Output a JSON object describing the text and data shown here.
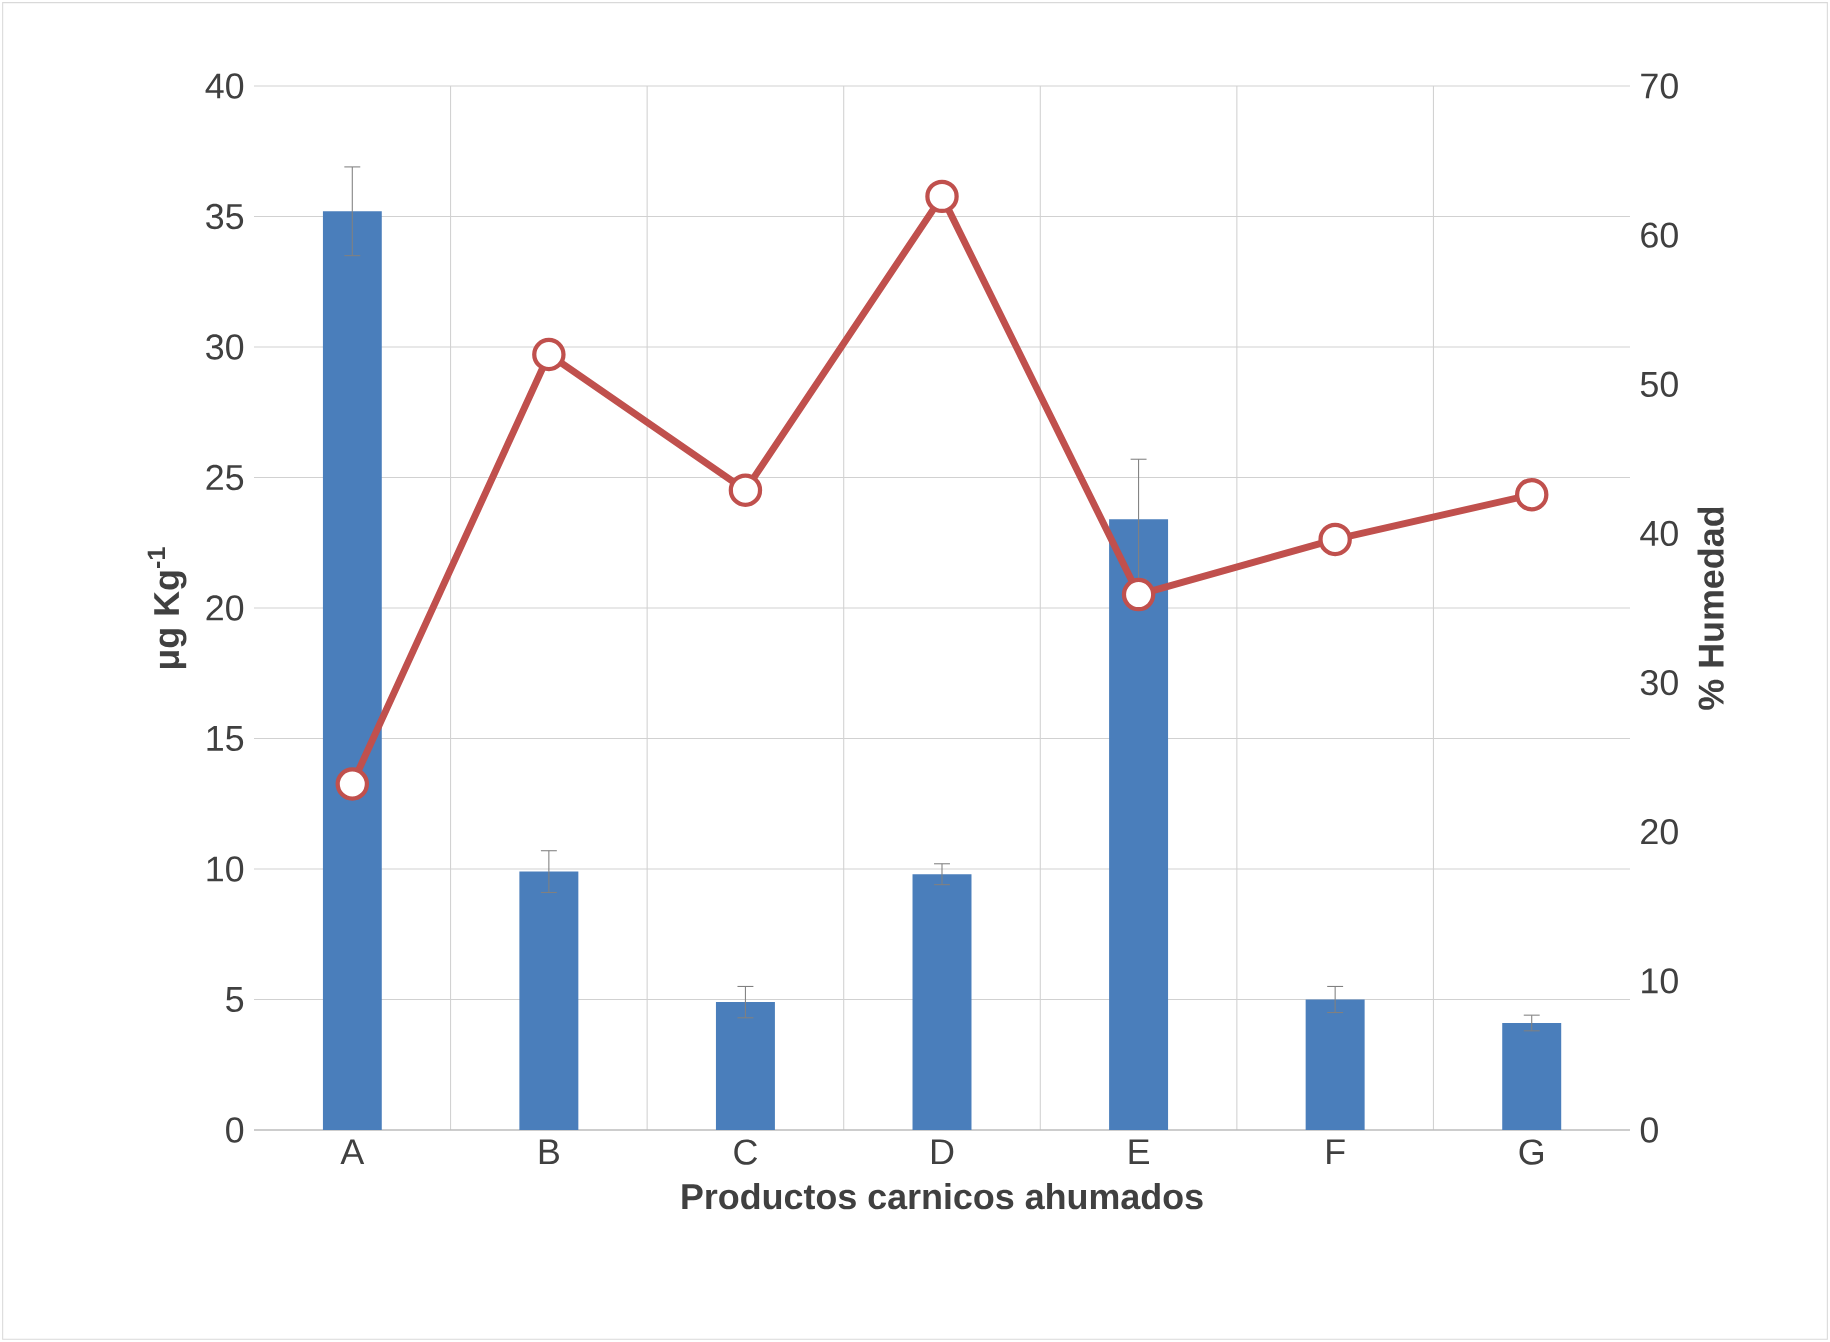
{
  "chart_data": {
    "type": "bar",
    "xlabel": "Productos carnicos ahumados",
    "ylabel": "μg Kg$^{-1}$",
    "y2label": "% Humedad",
    "categories": [
      "A",
      "B",
      "C",
      "D",
      "E",
      "F",
      "G"
    ],
    "series": [
      {
        "color": "#4a7ebb",
        "values": [
          35.2,
          9.9,
          4.9,
          9.8,
          23.4,
          5.0,
          4.1
        ],
        "errors": [
          1.7,
          0.8,
          0.6,
          0.4,
          2.3,
          0.5,
          0.3
        ]
      },
      {
        "type": "line",
        "axis": "y2",
        "color": "#c0504d",
        "marker": "circle",
        "values": [
          23.2,
          52.0,
          42.9,
          62.6,
          35.9,
          39.6,
          42.6
        ]
      }
    ],
    "ylim": [
      0,
      40
    ],
    "yticks": [
      0,
      5,
      10,
      15,
      20,
      25,
      30,
      35,
      40
    ],
    "y2lim": [
      0,
      70
    ],
    "y2ticks": [
      0,
      10,
      20,
      30,
      40,
      50,
      60,
      70
    ],
    "grid": true
  }
}
